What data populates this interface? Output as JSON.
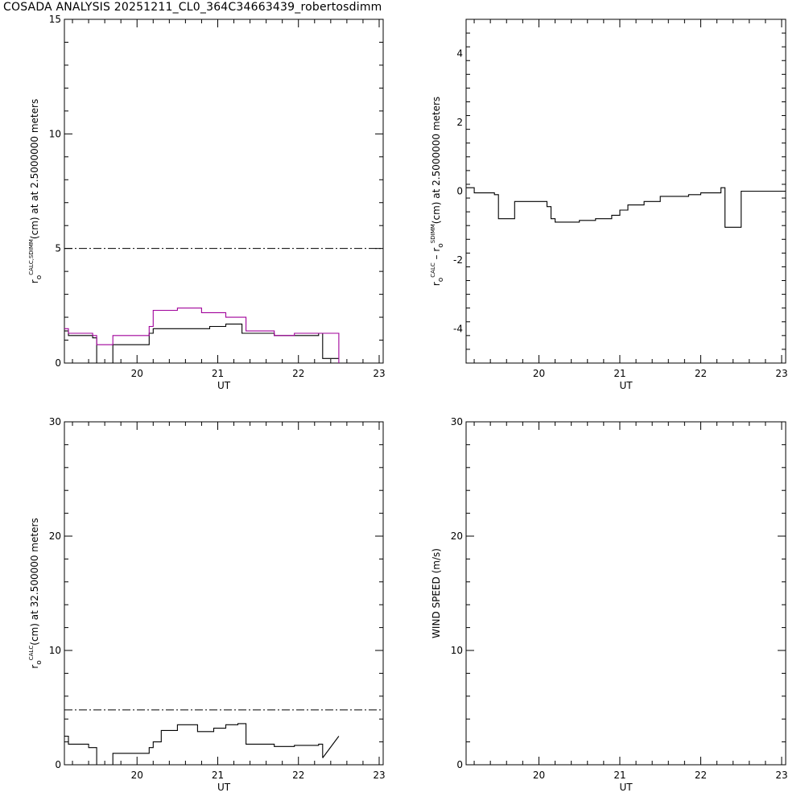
{
  "page": {
    "title": "COSADA ANALYSIS 20251211_CL0_364C34663439_robertosdimm"
  },
  "chart_data": [
    {
      "type": "line",
      "id": "p1",
      "xlabel": "UT",
      "ylabel_parts": [
        "r",
        "o",
        "CALC,SDIMM",
        "(cm) at  at 2.5000000 meters"
      ],
      "xlim": [
        19.1,
        23.05
      ],
      "ylim": [
        0,
        15
      ],
      "xticks": [
        20,
        21,
        22,
        23
      ],
      "yticks": [
        0,
        5,
        10,
        15
      ],
      "hlines": [
        {
          "y": 5,
          "style": "dashdot",
          "color": "#000000"
        }
      ],
      "series": [
        {
          "color": "#000000",
          "step": true,
          "x": [
            19.1,
            19.15,
            19.45,
            19.5,
            19.7,
            20.15,
            20.2,
            20.5,
            20.7,
            20.9,
            21.1,
            21.3,
            21.7,
            21.9,
            22.25,
            22.3,
            22.5
          ],
          "y": [
            1.4,
            1.2,
            1.1,
            0,
            0.8,
            1.3,
            1.5,
            1.5,
            1.5,
            1.6,
            1.7,
            1.3,
            1.2,
            1.2,
            1.3,
            0.2,
            0.2
          ]
        },
        {
          "color": "#a0009a",
          "step": true,
          "x": [
            19.1,
            19.15,
            19.45,
            19.5,
            19.7,
            20.15,
            20.2,
            20.5,
            20.8,
            21.1,
            21.35,
            21.7,
            21.95,
            22.25,
            22.5
          ],
          "y": [
            1.5,
            1.3,
            1.2,
            0.8,
            1.2,
            1.6,
            2.3,
            2.4,
            2.2,
            2.0,
            1.4,
            1.2,
            1.3,
            1.3,
            0
          ]
        }
      ]
    },
    {
      "type": "line",
      "id": "p2",
      "xlabel": "UT",
      "ylabel_parts": [
        "r",
        "o",
        "CALC",
        "  –  r",
        "o",
        "SDIMM",
        "(cm) at 2.5000000 meters"
      ],
      "xlim": [
        19.1,
        23.05
      ],
      "ylim": [
        -5,
        5
      ],
      "xticks": [
        20,
        21,
        22,
        23
      ],
      "yticks": [
        -4,
        -2,
        0,
        2,
        4
      ],
      "series": [
        {
          "color": "#000000",
          "step": true,
          "x": [
            19.1,
            19.2,
            19.45,
            19.5,
            19.7,
            20.1,
            20.15,
            20.2,
            20.5,
            20.7,
            20.9,
            21.0,
            21.1,
            21.3,
            21.5,
            21.7,
            21.85,
            22.0,
            22.25,
            22.3,
            22.5,
            23.05
          ],
          "y": [
            0.1,
            -0.05,
            -0.1,
            -0.8,
            -0.3,
            -0.45,
            -0.8,
            -0.9,
            -0.85,
            -0.8,
            -0.7,
            -0.55,
            -0.4,
            -0.3,
            -0.15,
            -0.15,
            -0.1,
            -0.05,
            0.1,
            -1.05,
            0,
            0
          ]
        }
      ]
    },
    {
      "type": "line",
      "id": "p3",
      "xlabel": "UT",
      "ylabel_parts": [
        "r",
        "o",
        "CALC",
        "(cm) at 32.500000 meters"
      ],
      "xlim": [
        19.1,
        23.05
      ],
      "ylim": [
        0,
        30
      ],
      "xticks": [
        20,
        21,
        22,
        23
      ],
      "yticks": [
        0,
        10,
        20,
        30
      ],
      "hlines": [
        {
          "y": 4.8,
          "style": "dashdot",
          "color": "#000000"
        }
      ],
      "series": [
        {
          "color": "#000000",
          "step": true,
          "x": [
            19.1,
            19.15,
            19.4,
            19.5,
            19.7,
            20.15,
            20.2,
            20.3,
            20.5,
            20.75,
            20.95,
            21.1,
            21.25,
            21.35,
            21.7,
            21.95,
            22.25,
            22.3
          ],
          "y": [
            2.5,
            1.8,
            1.5,
            0,
            1.0,
            1.5,
            2.0,
            3.0,
            3.5,
            2.9,
            3.2,
            3.5,
            3.6,
            1.8,
            1.6,
            1.7,
            1.8,
            0.6
          ]
        },
        {
          "color": "#000000",
          "step": false,
          "x": [
            22.3,
            22.5
          ],
          "y": [
            0.6,
            2.5
          ]
        }
      ]
    },
    {
      "type": "line",
      "id": "p4",
      "xlabel": "UT",
      "ylabel_parts": [
        "WIND SPEED (m/s)"
      ],
      "xlim": [
        19.1,
        23.05
      ],
      "ylim": [
        0,
        30
      ],
      "xticks": [
        20,
        21,
        22,
        23
      ],
      "yticks": [
        0,
        10,
        20,
        30
      ],
      "series": []
    }
  ]
}
